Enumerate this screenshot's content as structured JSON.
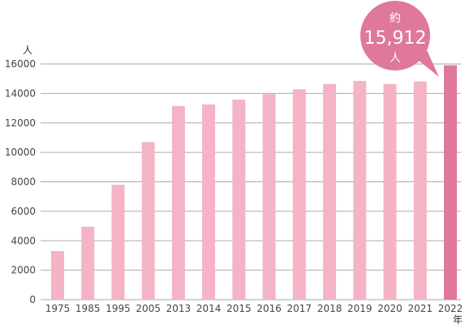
{
  "chart_data": {
    "type": "bar",
    "title": "",
    "xlabel": "",
    "ylabel": "",
    "y_unit_label": "人",
    "x_unit_label": "年",
    "categories": [
      "1975",
      "1985",
      "1995",
      "2005",
      "2013",
      "2014",
      "2015",
      "2016",
      "2017",
      "2018",
      "2019",
      "2020",
      "2021",
      "2022"
    ],
    "values": [
      3300,
      4950,
      7800,
      10700,
      13150,
      13250,
      13580,
      13950,
      14280,
      14640,
      14850,
      14640,
      14820,
      15912
    ],
    "ylim": [
      0,
      16000
    ],
    "yticks": [
      "0",
      "2000",
      "4000",
      "6000",
      "8000",
      "10000",
      "12000",
      "14000",
      "16000"
    ],
    "grid": true,
    "colors": {
      "bar": "#f4b4c6",
      "highlight_bar": "#e0779d",
      "callout": "#e0779d",
      "grid": "#aaaaaa"
    },
    "highlight_index": 13,
    "callout": {
      "line1": "約",
      "line2": "15,912",
      "line3": "人"
    }
  }
}
